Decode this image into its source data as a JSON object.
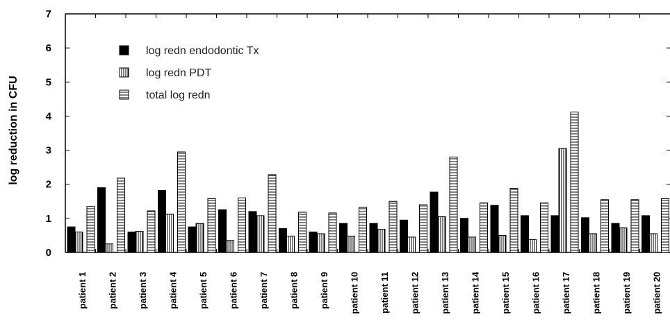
{
  "chart_data": {
    "type": "bar",
    "ylabel": "log reduction in CFU",
    "xlabel": "",
    "ylim": [
      0,
      7
    ],
    "yticks": [
      "0",
      "1",
      "2",
      "3",
      "4",
      "5",
      "6",
      "7"
    ],
    "legend_position": "top-left",
    "categories": [
      "patient 1",
      "patient 2",
      "patient 3",
      "patient 4",
      "patient 5",
      "patient 6",
      "patient 7",
      "patient 8",
      "patient 9",
      "patient 10",
      "patient 11",
      "patient 12",
      "patient 13",
      "patient 14",
      "patient 15",
      "patient 16",
      "patient 17",
      "patient 18",
      "patient 19",
      "patient 20"
    ],
    "series": [
      {
        "name": "log redn endodontic Tx",
        "pattern": "solid",
        "values": [
          0.75,
          1.9,
          0.6,
          1.82,
          0.75,
          1.25,
          1.2,
          0.7,
          0.6,
          0.85,
          0.85,
          0.95,
          1.77,
          1.0,
          1.38,
          1.08,
          1.08,
          1.02,
          0.85,
          1.08
        ]
      },
      {
        "name": "log redn PDT",
        "pattern": "vertical",
        "values": [
          0.6,
          0.25,
          0.62,
          1.12,
          0.85,
          0.35,
          1.08,
          0.48,
          0.55,
          0.48,
          0.68,
          0.45,
          1.05,
          0.45,
          0.5,
          0.38,
          3.05,
          0.55,
          0.72,
          0.55
        ]
      },
      {
        "name": "total log redn",
        "pattern": "horizontal",
        "values": [
          1.35,
          2.18,
          1.22,
          2.95,
          1.58,
          1.6,
          2.28,
          1.18,
          1.16,
          1.32,
          1.5,
          1.4,
          2.8,
          1.45,
          1.88,
          1.45,
          4.12,
          1.55,
          1.55,
          1.58
        ]
      }
    ]
  }
}
